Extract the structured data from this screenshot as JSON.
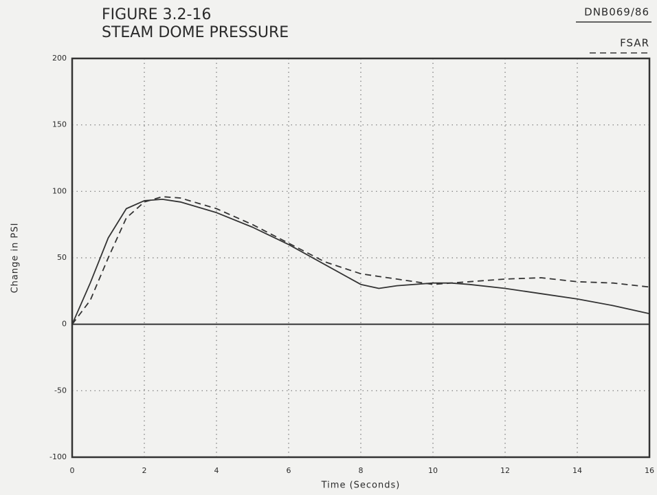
{
  "chart_data": {
    "type": "line",
    "title": "FIGURE 3.2-16",
    "subtitle": "STEAM DOME PRESSURE",
    "x_label": "Time (Seconds)",
    "y_label": "Change in PSI",
    "x": [
      0,
      0.5,
      1,
      1.5,
      2,
      2.5,
      3,
      4,
      5,
      6,
      7,
      8,
      8.5,
      9,
      10,
      10.5,
      11,
      12,
      13,
      14,
      15,
      16
    ],
    "series": [
      {
        "name": "DNB069/86",
        "color": "#333333",
        "line_style": "solid",
        "values": [
          0,
          31,
          65,
          87,
          93,
          94,
          92,
          84,
          73,
          60,
          45,
          30,
          27,
          29,
          31,
          31,
          30,
          27,
          23,
          19,
          14,
          8
        ]
      },
      {
        "name": "FSAR",
        "color": "#333333",
        "line_style": "dashed",
        "values": [
          0,
          18,
          50,
          80,
          92,
          96,
          95,
          87,
          75,
          61,
          47,
          38,
          36,
          34,
          30,
          31,
          32,
          34,
          35,
          32,
          31,
          28
        ]
      }
    ],
    "xlim": [
      0,
      16
    ],
    "xticks": [
      0,
      2,
      4,
      6,
      8,
      10,
      12,
      14,
      16
    ],
    "ylim": [
      -100,
      200
    ],
    "yticks": [
      -100,
      -50,
      0,
      50,
      100,
      150,
      200
    ],
    "grid": true,
    "legend": "top-right"
  }
}
